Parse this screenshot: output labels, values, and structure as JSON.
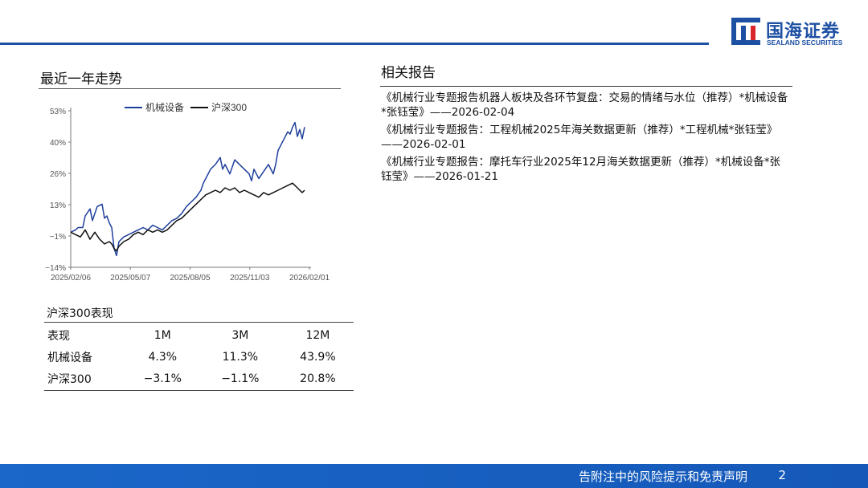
{
  "logo": {
    "cn": "国海证券",
    "en": "SEALAND SECURITIES"
  },
  "left": {
    "title": "最近一年走势"
  },
  "chart_data": {
    "type": "line",
    "legend": [
      "机械设备",
      "沪深300"
    ],
    "yticks": [
      "53%",
      "40%",
      "26%",
      "13%",
      "−1%",
      "−14%"
    ],
    "xticks": [
      "2025/02/06",
      "2025/05/07",
      "2025/08/05",
      "2025/11/03",
      "2026/02/01"
    ],
    "ylim": [
      -14,
      53
    ],
    "x_count": 100,
    "series": [
      {
        "name": "机械设备",
        "color": "#1f3f9c",
        "points": [
          [
            0,
            1
          ],
          [
            2,
            2
          ],
          [
            3,
            3
          ],
          [
            5,
            3
          ],
          [
            6,
            8
          ],
          [
            8,
            11
          ],
          [
            9,
            6
          ],
          [
            11,
            12
          ],
          [
            13,
            13
          ],
          [
            14,
            7
          ],
          [
            15,
            8
          ],
          [
            16,
            5
          ],
          [
            17,
            3
          ],
          [
            18,
            -6
          ],
          [
            19,
            -9
          ],
          [
            20,
            -3
          ],
          [
            21,
            -2
          ],
          [
            22,
            -1
          ],
          [
            24,
            0
          ],
          [
            26,
            1
          ],
          [
            28,
            2
          ],
          [
            30,
            3
          ],
          [
            32,
            2
          ],
          [
            34,
            4
          ],
          [
            36,
            3
          ],
          [
            38,
            2
          ],
          [
            40,
            4
          ],
          [
            42,
            6
          ],
          [
            44,
            7
          ],
          [
            46,
            9
          ],
          [
            48,
            12
          ],
          [
            50,
            14
          ],
          [
            52,
            16
          ],
          [
            54,
            19
          ],
          [
            55,
            22
          ],
          [
            57,
            26
          ],
          [
            58,
            28
          ],
          [
            60,
            30
          ],
          [
            62,
            33
          ],
          [
            63,
            28
          ],
          [
            64,
            30
          ],
          [
            66,
            26
          ],
          [
            67,
            29
          ],
          [
            68,
            32
          ],
          [
            70,
            30
          ],
          [
            72,
            28
          ],
          [
            74,
            26
          ],
          [
            75,
            23
          ],
          [
            76,
            28
          ],
          [
            78,
            24
          ],
          [
            80,
            27
          ],
          [
            82,
            30
          ],
          [
            84,
            26
          ],
          [
            85,
            30
          ],
          [
            86,
            36
          ],
          [
            88,
            40
          ],
          [
            90,
            44
          ],
          [
            91,
            43
          ],
          [
            92,
            46
          ],
          [
            93,
            48
          ],
          [
            94,
            42
          ],
          [
            95,
            45
          ],
          [
            96,
            41
          ],
          [
            97,
            46
          ]
        ]
      },
      {
        "name": "沪深300",
        "color": "#111111",
        "points": [
          [
            0,
            1
          ],
          [
            2,
            0
          ],
          [
            4,
            -1
          ],
          [
            6,
            2
          ],
          [
            8,
            -2
          ],
          [
            10,
            1
          ],
          [
            12,
            -2
          ],
          [
            14,
            -4
          ],
          [
            16,
            -3
          ],
          [
            17,
            -4
          ],
          [
            18,
            -6
          ],
          [
            19,
            -7
          ],
          [
            20,
            -5
          ],
          [
            22,
            -3
          ],
          [
            24,
            -2
          ],
          [
            26,
            0
          ],
          [
            28,
            1
          ],
          [
            30,
            0
          ],
          [
            32,
            2
          ],
          [
            34,
            1
          ],
          [
            36,
            2
          ],
          [
            38,
            1
          ],
          [
            40,
            2
          ],
          [
            42,
            4
          ],
          [
            44,
            6
          ],
          [
            46,
            7
          ],
          [
            48,
            9
          ],
          [
            50,
            11
          ],
          [
            52,
            13
          ],
          [
            54,
            15
          ],
          [
            56,
            17
          ],
          [
            58,
            18
          ],
          [
            60,
            19
          ],
          [
            62,
            18
          ],
          [
            64,
            20
          ],
          [
            66,
            19
          ],
          [
            68,
            20
          ],
          [
            70,
            18
          ],
          [
            72,
            19
          ],
          [
            74,
            18
          ],
          [
            76,
            17
          ],
          [
            78,
            16
          ],
          [
            80,
            18
          ],
          [
            82,
            17
          ],
          [
            84,
            18
          ],
          [
            86,
            19
          ],
          [
            88,
            20
          ],
          [
            90,
            21
          ],
          [
            92,
            22
          ],
          [
            93,
            21
          ],
          [
            94,
            20
          ],
          [
            95,
            19
          ],
          [
            96,
            18
          ],
          [
            97,
            19
          ]
        ]
      }
    ]
  },
  "perf": {
    "title": "沪深300表现",
    "header": [
      "表现",
      "1M",
      "3M",
      "12M"
    ],
    "rows": [
      [
        "机械设备",
        "4.3%",
        "11.3%",
        "43.9%"
      ],
      [
        "沪深300",
        "−3.1%",
        "−1.1%",
        "20.8%"
      ]
    ]
  },
  "right": {
    "title": "相关报告",
    "reports": [
      "《机械行业专题报告机器人板块及各环节复盘：交易的情绪与水位（推荐）*机械设备*张钰莹》——2026-02-04",
      "《机械行业专题报告：工程机械2025年海关数据更新（推荐）*工程机械*张钰莹》——2026-02-01",
      "《机械行业专题报告：摩托车行业2025年12月海关数据更新（推荐）*机械设备*张钰莹》——2026-01-21"
    ]
  },
  "footer": {
    "text": "告附注中的风险提示和免责声明",
    "page": "2"
  }
}
